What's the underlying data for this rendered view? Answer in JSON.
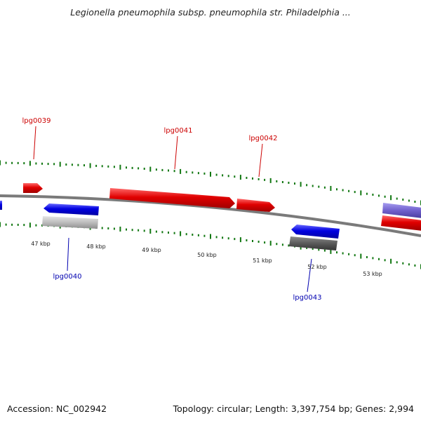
{
  "header": {
    "title": "Legionella pneumophila subsp. pneumophila str. Philadelphia ..."
  },
  "footer": {
    "accession": "Accession: NC_002942",
    "summary": "Topology: circular; Length: 3,397,754 bp; Genes: 2,994"
  },
  "scale": {
    "ticks": [
      {
        "label": "47 kbp"
      },
      {
        "label": "48 kbp"
      },
      {
        "label": "49 kbp"
      },
      {
        "label": "50 kbp"
      },
      {
        "label": "51 kbp"
      },
      {
        "label": "52 kbp"
      },
      {
        "label": "53 kbp"
      }
    ]
  },
  "genes": [
    {
      "id": "g39",
      "label": "lpg0039",
      "color": "#e00000",
      "strand": "forward"
    },
    {
      "id": "g41",
      "label": "lpg0041",
      "color": "#e00000",
      "strand": "forward"
    },
    {
      "id": "g42",
      "label": "lpg0042",
      "color": "#e00000",
      "strand": "forward"
    },
    {
      "id": "g40",
      "label": "lpg0040",
      "color": "#0000e0",
      "strand": "reverse"
    },
    {
      "id": "g43",
      "label": "lpg0043",
      "color": "#0000e0",
      "strand": "reverse"
    }
  ],
  "colors": {
    "backbone": "#7a7a7a",
    "forward_gene": "#e00000",
    "reverse_gene": "#0000e0",
    "forward_label": "#cc0000",
    "reverse_label": "#0000b0",
    "tick": "#117711",
    "rna_light": "#bbbbbb",
    "rna_dark": "#555555",
    "partial_purple": "#7060cc"
  }
}
